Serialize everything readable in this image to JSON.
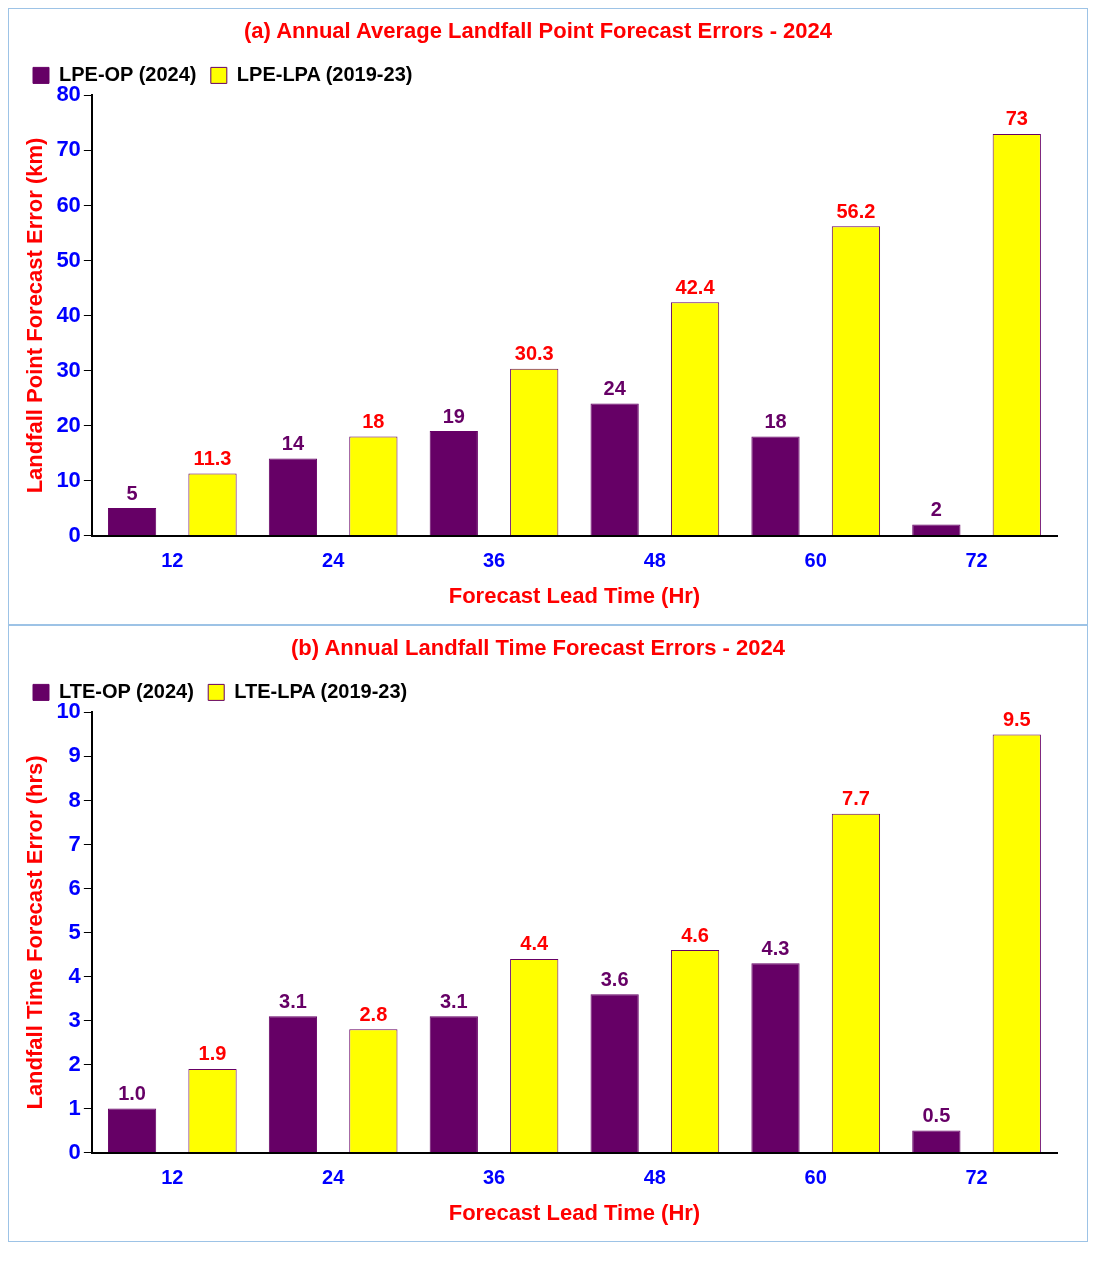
{
  "chart_data": [
    {
      "type": "bar",
      "title": "(a) Annual Average Landfall Point Forecast Errors - 2024",
      "xlabel": "Forecast Lead Time (Hr)",
      "ylabel": "Landfall Point Forecast Error (km)",
      "categories": [
        "12",
        "24",
        "36",
        "48",
        "60",
        "72"
      ],
      "series": [
        {
          "name": "LPE-OP (2024)",
          "color": "#660066",
          "values": [
            5,
            14,
            19,
            24,
            18,
            2
          ],
          "value_labels": [
            "5",
            "14",
            "19",
            "24",
            "18",
            "2"
          ]
        },
        {
          "name": "LPE-LPA (2019-23)",
          "color": "#ffff00",
          "values": [
            11.3,
            18,
            30.3,
            42.4,
            56.2,
            73
          ],
          "value_labels": [
            "11.3",
            "18",
            "30.3",
            "42.4",
            "56.2",
            "73"
          ]
        }
      ],
      "ylim": [
        0,
        80
      ],
      "yticks": [
        0,
        10,
        20,
        30,
        40,
        50,
        60,
        70,
        80
      ],
      "grid": false,
      "legend": "top left"
    },
    {
      "type": "bar",
      "title": "(b) Annual Landfall Time Forecast Errors - 2024",
      "xlabel": "Forecast Lead Time (Hr)",
      "ylabel": "Landfall Time Forecast Error (hrs)",
      "categories": [
        "12",
        "24",
        "36",
        "48",
        "60",
        "72"
      ],
      "series": [
        {
          "name": "LTE-OP (2024)",
          "color": "#660066",
          "values": [
            1.0,
            3.1,
            3.1,
            3.6,
            4.3,
            0.5
          ],
          "value_labels": [
            "1.0",
            "3.1",
            "3.1",
            "3.6",
            "4.3",
            "0.5"
          ]
        },
        {
          "name": "LTE-LPA (2019-23)",
          "color": "#ffff00",
          "values": [
            1.9,
            2.8,
            4.4,
            4.6,
            7.7,
            9.5
          ],
          "value_labels": [
            "1.9",
            "2.8",
            "4.4",
            "4.6",
            "7.7",
            "9.5"
          ]
        }
      ],
      "ylim": [
        0,
        10
      ],
      "yticks": [
        0,
        1,
        2,
        3,
        4,
        5,
        6,
        7,
        8,
        9,
        10
      ],
      "grid": false,
      "legend": "top left"
    }
  ]
}
